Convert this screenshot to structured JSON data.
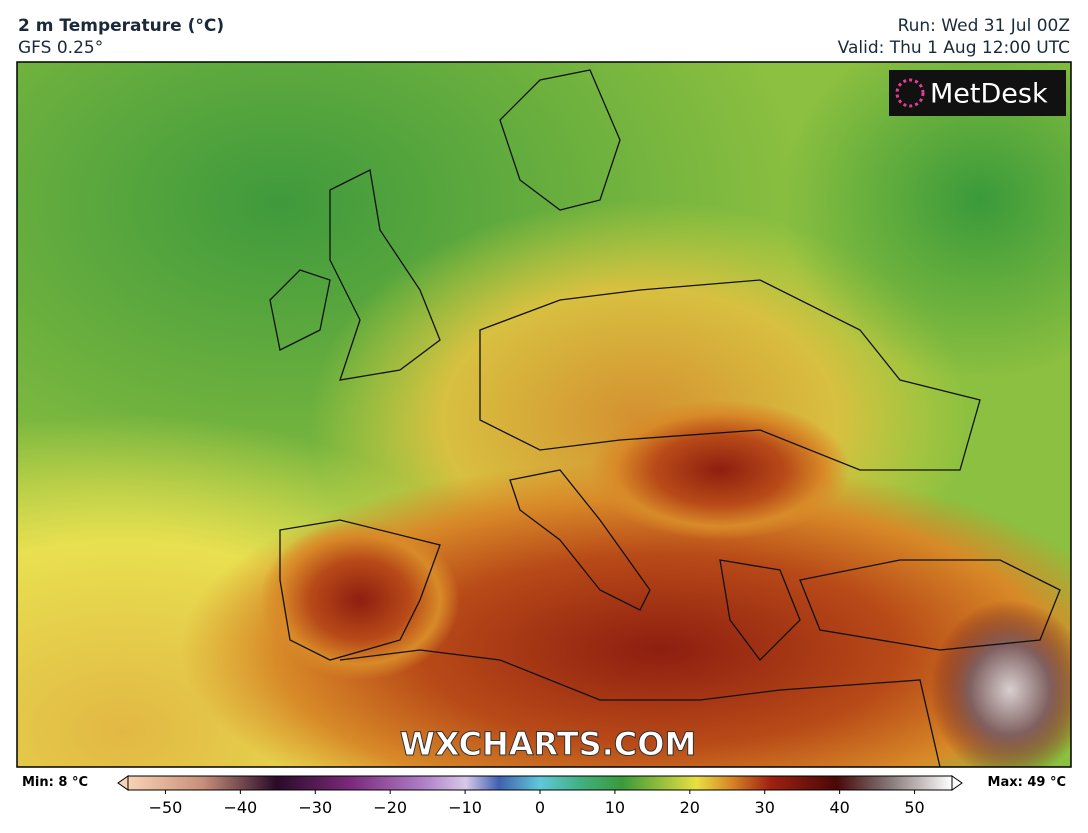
{
  "header": {
    "title": "2 m Temperature (°C)",
    "subtitle": "GFS 0.25°",
    "run": "Run: Wed 31 Jul 00Z",
    "valid": "Valid: Thu 1 Aug 12:00 UTC"
  },
  "logo": "MetDesk",
  "watermark": "WXCHARTS.COM",
  "colorbar": {
    "min_label": "Min: 8 °C",
    "max_label": "Max: 49 °C",
    "lim": [
      -55,
      55
    ],
    "ticks": [
      {
        "value": -50,
        "label": "−50"
      },
      {
        "value": -40,
        "label": "−40"
      },
      {
        "value": -30,
        "label": "−30"
      },
      {
        "value": -20,
        "label": "−20"
      },
      {
        "value": -10,
        "label": "−10"
      },
      0,
      10,
      20,
      30,
      40,
      50
    ]
  }
}
